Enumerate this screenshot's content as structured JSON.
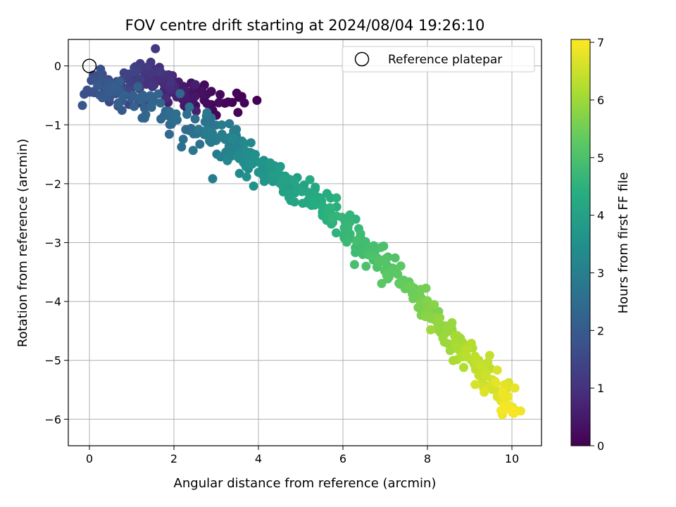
{
  "chart_data": {
    "type": "scatter",
    "title": "FOV centre drift starting at 2024/08/04 19:26:10",
    "xlabel": "Angular distance from reference (arcmin)",
    "ylabel": "Rotation from reference (arcmin)",
    "xlim": [
      -0.5,
      10.7
    ],
    "ylim": [
      -6.45,
      0.45
    ],
    "xticks": [
      0,
      2,
      4,
      6,
      8,
      10
    ],
    "yticks": [
      0,
      -1,
      -2,
      -3,
      -4,
      -5,
      -6
    ],
    "grid": true,
    "colormap": "viridis",
    "colorbar": {
      "label": "Hours from first FF file",
      "range": [
        0,
        7.05
      ],
      "ticks": [
        0,
        1,
        2,
        3,
        4,
        5,
        6,
        7
      ]
    },
    "legend": {
      "position": "top-right",
      "entries": [
        "Reference platepar"
      ]
    },
    "reference_point": {
      "x": 0,
      "y": 0
    },
    "series": [
      {
        "hours": [
          0.0,
          0.25,
          0.5,
          0.75,
          1.0,
          1.25,
          1.5,
          1.75,
          2.0,
          2.25,
          2.5,
          2.75,
          3.0,
          3.25,
          3.5,
          3.75,
          4.0,
          4.25,
          4.5,
          4.75,
          5.0,
          5.25,
          5.5,
          5.75,
          6.0,
          6.25,
          6.5,
          6.75,
          7.0
        ],
        "x": [
          3.6,
          2.6,
          2.2,
          1.8,
          1.5,
          1.1,
          0.6,
          0.3,
          0.5,
          1.3,
          2.3,
          2.8,
          3.3,
          3.6,
          3.9,
          4.3,
          4.8,
          5.3,
          5.8,
          6.3,
          6.8,
          7.3,
          7.8,
          8.2,
          8.6,
          9.0,
          9.4,
          9.8,
          10.05
        ],
        "y": [
          -0.7,
          -0.45,
          -0.55,
          -0.3,
          -0.2,
          -0.2,
          -0.35,
          -0.35,
          -0.45,
          -0.65,
          -0.95,
          -1.1,
          -1.25,
          -1.5,
          -1.65,
          -1.85,
          -2.05,
          -2.3,
          -2.55,
          -2.9,
          -3.25,
          -3.6,
          -3.95,
          -4.25,
          -4.6,
          -4.95,
          -5.25,
          -5.55,
          -5.9
        ]
      }
    ]
  }
}
